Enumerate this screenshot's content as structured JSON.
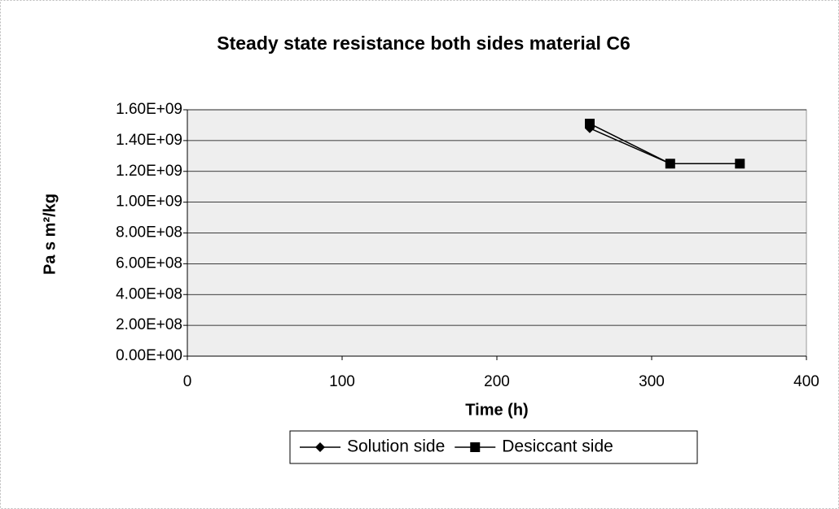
{
  "chart_data": {
    "type": "line",
    "title": "Steady state resistance both sides material C6",
    "x_label": "Time (h)",
    "y_label": "Pa s m²/kg",
    "series": [
      {
        "name": "Solution side",
        "color": "#000000",
        "marker": "diamond",
        "x": [
          260,
          312,
          357
        ],
        "values": [
          1480000000,
          1250000000,
          1250000000
        ]
      },
      {
        "name": "Desiccant side",
        "color": "#000000",
        "marker": "square",
        "x": [
          260,
          312,
          357
        ],
        "values": [
          1510000000,
          1250000000,
          1250000000
        ]
      }
    ],
    "xlim": [
      0,
      400
    ],
    "xticks": [
      0,
      100,
      200,
      300,
      400
    ],
    "ylim": [
      0,
      1600000000
    ],
    "yticks": [
      {
        "value": 0,
        "label": "0.00E+00"
      },
      {
        "value": 200000000,
        "label": "2.00E+08"
      },
      {
        "value": 400000000,
        "label": "4.00E+08"
      },
      {
        "value": 600000000,
        "label": "6.00E+08"
      },
      {
        "value": 800000000,
        "label": "8.00E+08"
      },
      {
        "value": 1000000000,
        "label": "1.00E+09"
      },
      {
        "value": 1200000000,
        "label": "1.20E+09"
      },
      {
        "value": 1400000000,
        "label": "1.40E+09"
      },
      {
        "value": 1600000000,
        "label": "1.60E+09"
      }
    ],
    "grid": true,
    "legend": "bottom"
  }
}
